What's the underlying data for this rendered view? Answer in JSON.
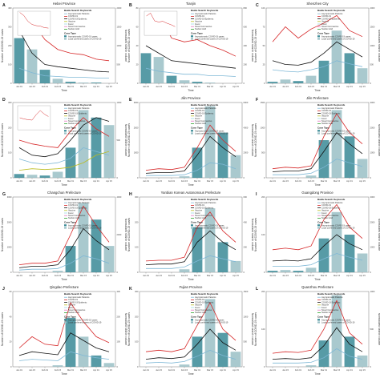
{
  "figure": {
    "x_axis_label": "Time",
    "left_axis_label": "Number of COVID-19 cases",
    "right_axis_label": "Normalized search volume",
    "legend_keyword_head": "Baidu Search Keywords",
    "legend_case_head": "Case Type",
    "keyword_names": [
      "Asymptomatic Patients",
      "COVID-19",
      "COVID-19 Epidemic",
      "Vaccine",
      "Fever",
      "Novel Coronavirus",
      "Nucleic Acid"
    ],
    "case_names": [
      "Asymptomatic COVID-19 cases",
      "Local confirmed cases of COVID-19"
    ],
    "date_ticks": [
      "Jan 01",
      "Jan 15",
      "Feb 01",
      "Feb 15",
      "Mar 01",
      "Mar 15",
      "Apr 01",
      "Apr 15"
    ],
    "colors": {
      "covid19": "#d62728",
      "epidemic": "#111111",
      "asymptomatic": "#7fb8d6",
      "vaccine": "#bcbd22",
      "fever": "#9edae5",
      "novel": "#e377c2",
      "nucleic": "#2ca02c",
      "bars_asym": "#3a8a96",
      "bars_local": "#9ac0c6"
    }
  },
  "chart_data": [
    {
      "type": "line",
      "letter": "A",
      "title": "Hebei Province",
      "inset": true,
      "x": [
        "Jan 01",
        "Jan 15",
        "Feb 01",
        "Feb 15",
        "Mar 01",
        "Mar 15",
        "Apr 01",
        "Apr 15"
      ],
      "left_ticks": [
        "0",
        "100",
        "200",
        "300",
        "400"
      ],
      "right_ticks": [
        "0",
        "500",
        "1000",
        "1500",
        "2000"
      ],
      "series": [
        {
          "key": "covid19",
          "values": [
            95,
            82,
            58,
            45,
            40,
            38,
            32,
            30
          ]
        },
        {
          "key": "epidemic",
          "values": [
            70,
            40,
            25,
            22,
            20,
            18,
            16,
            15
          ]
        },
        {
          "key": "asymptomatic",
          "values": [
            20,
            14,
            10,
            9,
            8,
            8,
            7,
            7
          ]
        }
      ],
      "bars": [
        60,
        45,
        18,
        6,
        2,
        1,
        1,
        0
      ]
    },
    {
      "type": "line",
      "letter": "B",
      "title": "Tianjin",
      "inset": true,
      "x": [
        "Jan 01",
        "Jan 15",
        "Feb 01",
        "Feb 15",
        "Mar 01",
        "Mar 15",
        "Apr 01",
        "Apr 15"
      ],
      "left_ticks": [
        "0",
        "20",
        "40",
        "60",
        "80"
      ],
      "right_ticks": [
        "0",
        "200",
        "400",
        "600",
        "800"
      ],
      "series": [
        {
          "key": "covid19",
          "values": [
            80,
            92,
            60,
            55,
            58,
            50,
            44,
            36
          ]
        },
        {
          "key": "epidemic",
          "values": [
            50,
            40,
            30,
            28,
            26,
            24,
            22,
            20
          ]
        },
        {
          "key": "asymptomatic",
          "values": [
            20,
            16,
            14,
            12,
            12,
            10,
            10,
            9
          ]
        }
      ],
      "bars": [
        40,
        35,
        10,
        4,
        2,
        1,
        0,
        0
      ]
    },
    {
      "type": "line",
      "letter": "C",
      "title": "Shenzhen City",
      "inset": false,
      "x": [
        "Jan 01",
        "Jan 15",
        "Feb 01",
        "Feb 15",
        "Mar 01",
        "Mar 15",
        "Apr 01",
        "Apr 15"
      ],
      "left_ticks": [
        "0",
        "25",
        "50",
        "75",
        "100"
      ],
      "right_ticks": [
        "0",
        "500",
        "1000",
        "1500",
        "2000"
      ],
      "series": [
        {
          "key": "covid19",
          "values": [
            55,
            75,
            60,
            72,
            80,
            90,
            70,
            62
          ]
        },
        {
          "key": "epidemic",
          "values": [
            30,
            25,
            24,
            28,
            40,
            55,
            45,
            35
          ]
        },
        {
          "key": "asymptomatic",
          "values": [
            18,
            16,
            15,
            18,
            22,
            30,
            26,
            22
          ]
        }
      ],
      "bars": [
        2,
        5,
        3,
        10,
        30,
        70,
        40,
        20
      ]
    },
    {
      "type": "line",
      "letter": "D",
      "title": "",
      "inset": true,
      "x": [
        "Jan 01",
        "Jan 15",
        "Feb 01",
        "Feb 15",
        "Mar 01",
        "Mar 15",
        "Apr 01",
        "Apr 15"
      ],
      "left_ticks": [
        "0",
        "100",
        "200",
        "300"
      ],
      "right_ticks": [
        "0",
        "500",
        "1000"
      ],
      "series": [
        {
          "key": "covid19",
          "values": [
            50,
            45,
            42,
            40,
            62,
            80,
            65,
            55
          ]
        },
        {
          "key": "epidemic",
          "values": [
            40,
            30,
            28,
            32,
            50,
            70,
            80,
            75
          ]
        },
        {
          "key": "asymptomatic",
          "values": [
            25,
            20,
            18,
            20,
            26,
            40,
            35,
            30
          ]
        },
        {
          "key": "vaccine",
          "values": [
            10,
            12,
            11,
            12,
            14,
            20,
            30,
            35
          ]
        }
      ],
      "bars": [
        5,
        4,
        3,
        8,
        40,
        90,
        80,
        70
      ]
    },
    {
      "type": "line",
      "letter": "E",
      "title": "Jilin Province",
      "inset": false,
      "x": [
        "Jan 01",
        "Jan 15",
        "Feb 01",
        "Feb 15",
        "Mar 01",
        "Mar 15",
        "Apr 01",
        "Apr 15"
      ],
      "left_ticks": [
        "0",
        "1000",
        "2000",
        "3000"
      ],
      "right_ticks": [
        "0",
        "2000",
        "4000",
        "6000"
      ],
      "series": [
        {
          "key": "covid19",
          "values": [
            10,
            12,
            11,
            14,
            40,
            70,
            50,
            35
          ]
        },
        {
          "key": "epidemic",
          "values": [
            6,
            7,
            7,
            9,
            30,
            55,
            40,
            28
          ]
        },
        {
          "key": "asymptomatic",
          "values": [
            3,
            3,
            3,
            4,
            10,
            20,
            18,
            12
          ]
        }
      ],
      "bars": [
        0,
        0,
        0,
        2,
        40,
        95,
        60,
        30
      ]
    },
    {
      "type": "line",
      "letter": "F",
      "title": "Jilin Prefecture",
      "inset": false,
      "x": [
        "Jan 01",
        "Jan 15",
        "Feb 01",
        "Feb 15",
        "Mar 01",
        "Mar 15",
        "Apr 01",
        "Apr 15"
      ],
      "left_ticks": [
        "0",
        "500",
        "1000",
        "1500"
      ],
      "right_ticks": [
        "0",
        "1000",
        "2000",
        "3000"
      ],
      "series": [
        {
          "key": "covid19",
          "values": [
            12,
            14,
            13,
            16,
            55,
            85,
            60,
            45
          ]
        },
        {
          "key": "epidemic",
          "values": [
            8,
            9,
            9,
            12,
            35,
            60,
            45,
            32
          ]
        },
        {
          "key": "asymptomatic",
          "values": [
            4,
            4,
            4,
            6,
            14,
            25,
            20,
            15
          ]
        }
      ],
      "bars": [
        0,
        0,
        0,
        3,
        50,
        90,
        55,
        25
      ]
    },
    {
      "type": "line",
      "letter": "G",
      "title": "Changchun Prefecture",
      "inset": false,
      "x": [
        "Jan 01",
        "Jan 15",
        "Feb 01",
        "Feb 15",
        "Mar 01",
        "Mar 15",
        "Apr 01",
        "Apr 15"
      ],
      "left_ticks": [
        "0",
        "1000",
        "2000",
        "3000"
      ],
      "right_ticks": [
        "0",
        "2000",
        "4000"
      ],
      "series": [
        {
          "key": "covid19",
          "values": [
            10,
            12,
            12,
            15,
            50,
            88,
            62,
            40
          ]
        },
        {
          "key": "epidemic",
          "values": [
            6,
            8,
            8,
            10,
            30,
            58,
            42,
            30
          ]
        },
        {
          "key": "asymptomatic",
          "values": [
            3,
            4,
            4,
            5,
            12,
            22,
            18,
            12
          ]
        }
      ],
      "bars": [
        0,
        0,
        0,
        2,
        35,
        92,
        70,
        35
      ]
    },
    {
      "type": "line",
      "letter": "H",
      "title": "Yanbian Korean Autonomous Prefecture",
      "inset": false,
      "x": [
        "Jan 01",
        "Jan 15",
        "Feb 01",
        "Feb 15",
        "Mar 01",
        "Mar 15",
        "Apr 01",
        "Apr 15"
      ],
      "left_ticks": [
        "0",
        "100",
        "200",
        "300"
      ],
      "right_ticks": [
        "0",
        "200",
        "400",
        "600"
      ],
      "series": [
        {
          "key": "covid19",
          "values": [
            15,
            16,
            16,
            20,
            60,
            80,
            55,
            40
          ]
        },
        {
          "key": "epidemic",
          "values": [
            10,
            11,
            11,
            14,
            40,
            55,
            40,
            30
          ]
        },
        {
          "key": "asymptomatic",
          "values": [
            5,
            5,
            5,
            7,
            15,
            22,
            18,
            14
          ]
        }
      ],
      "bars": [
        0,
        0,
        0,
        4,
        60,
        85,
        40,
        15
      ]
    },
    {
      "type": "line",
      "letter": "I",
      "title": "Guangdong Province",
      "inset": false,
      "x": [
        "Jan 01",
        "Jan 15",
        "Feb 01",
        "Feb 15",
        "Mar 01",
        "Mar 15",
        "Apr 01",
        "Apr 15"
      ],
      "left_ticks": [
        "0",
        "100",
        "200"
      ],
      "right_ticks": [
        "0",
        "1000",
        "2000",
        "3000"
      ],
      "series": [
        {
          "key": "covid19",
          "values": [
            30,
            32,
            30,
            35,
            70,
            90,
            60,
            45
          ]
        },
        {
          "key": "epidemic",
          "values": [
            15,
            16,
            15,
            18,
            35,
            50,
            38,
            30
          ]
        },
        {
          "key": "asymptomatic",
          "values": [
            8,
            8,
            8,
            10,
            18,
            25,
            20,
            16
          ]
        }
      ],
      "bars": [
        2,
        3,
        2,
        6,
        45,
        80,
        50,
        25
      ]
    },
    {
      "type": "line",
      "letter": "J",
      "title": "Qingdao Prefecture",
      "inset": false,
      "x": [
        "Jan 01",
        "Jan 15",
        "Feb 01",
        "Feb 15",
        "Mar 01",
        "Mar 15",
        "Apr 01",
        "Apr 15"
      ],
      "left_ticks": [
        "0",
        "20",
        "40",
        "60"
      ],
      "right_ticks": [
        "0",
        "100",
        "200",
        "300"
      ],
      "series": [
        {
          "key": "covid19",
          "values": [
            25,
            40,
            30,
            28,
            85,
            60,
            40,
            32
          ]
        },
        {
          "key": "epidemic",
          "values": [
            15,
            20,
            18,
            16,
            45,
            35,
            25,
            20
          ]
        },
        {
          "key": "asymptomatic",
          "values": [
            8,
            10,
            9,
            8,
            20,
            15,
            12,
            10
          ]
        }
      ],
      "bars": [
        0,
        0,
        0,
        2,
        65,
        40,
        15,
        5
      ]
    },
    {
      "type": "line",
      "letter": "K",
      "title": "Fujian Province",
      "inset": false,
      "x": [
        "Jan 01",
        "Jan 15",
        "Feb 01",
        "Feb 15",
        "Mar 01",
        "Mar 15",
        "Apr 01",
        "Apr 15"
      ],
      "left_ticks": [
        "0",
        "100",
        "200",
        "300"
      ],
      "right_ticks": [
        "0",
        "500",
        "1000",
        "1500"
      ],
      "series": [
        {
          "key": "covid19",
          "values": [
            20,
            22,
            20,
            24,
            55,
            85,
            50,
            35
          ]
        },
        {
          "key": "epidemic",
          "values": [
            10,
            12,
            11,
            13,
            30,
            50,
            32,
            22
          ]
        },
        {
          "key": "asymptomatic",
          "values": [
            5,
            6,
            5,
            7,
            14,
            22,
            15,
            10
          ]
        }
      ],
      "bars": [
        0,
        0,
        0,
        3,
        40,
        90,
        45,
        20
      ]
    },
    {
      "type": "line",
      "letter": "L",
      "title": "Quanzhou Prefecture",
      "inset": false,
      "x": [
        "Jan 01",
        "Jan 15",
        "Feb 01",
        "Feb 15",
        "Mar 01",
        "Mar 15",
        "Apr 01",
        "Apr 15"
      ],
      "left_ticks": [
        "0",
        "100",
        "200"
      ],
      "right_ticks": [
        "0",
        "500",
        "1000"
      ],
      "series": [
        {
          "key": "covid19",
          "values": [
            18,
            20,
            19,
            22,
            50,
            88,
            45,
            30
          ]
        },
        {
          "key": "epidemic",
          "values": [
            10,
            11,
            10,
            12,
            28,
            52,
            30,
            20
          ]
        },
        {
          "key": "asymptomatic",
          "values": [
            5,
            5,
            5,
            6,
            12,
            24,
            14,
            10
          ]
        }
      ],
      "bars": [
        0,
        0,
        0,
        2,
        35,
        95,
        40,
        15
      ]
    }
  ]
}
